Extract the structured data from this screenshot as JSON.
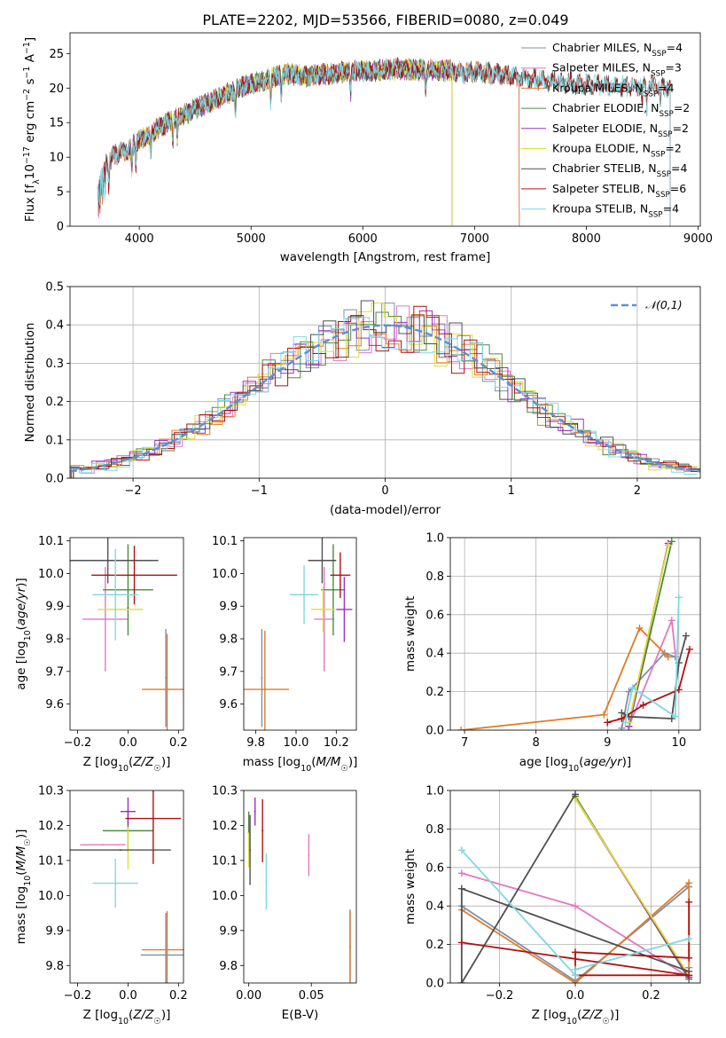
{
  "figure_title": "PLATE=2202, MJD=53566, FIBERID=0080, z=0.049",
  "colors": {
    "Chabrier MILES": "#7f8fa6",
    "Salpeter MILES": "#e377c2",
    "Kroupa MILES": "#e07b28",
    "Chabrier ELODIE": "#4c8c3c",
    "Salpeter ELODIE": "#9b30c8",
    "Kroupa ELODIE": "#dede30",
    "Chabrier STELIB": "#505050",
    "Salpeter STELIB": "#b01010",
    "Kroupa STELIB": "#7fd8e0"
  },
  "chart_data": [
    {
      "id": "spectrum",
      "type": "line",
      "xlabel": "wavelength [Angstrom, rest frame]",
      "ylabel": "Flux [f_λ10^-17 erg cm^-2 s^-1 A^-1]",
      "xlim": [
        3380,
        9020
      ],
      "ylim": [
        0,
        28
      ],
      "xticks": [
        4000,
        5000,
        6000,
        7000,
        8000,
        9000
      ],
      "yticks": [
        0,
        5,
        10,
        15,
        20,
        25
      ],
      "grid": false,
      "legend_position": "top-right",
      "continuum": [
        [
          3630,
          7
        ],
        [
          3700,
          9
        ],
        [
          3800,
          10.5
        ],
        [
          3900,
          11
        ],
        [
          4000,
          12.5
        ],
        [
          4100,
          13.5
        ],
        [
          4300,
          15.5
        ],
        [
          4500,
          17
        ],
        [
          4700,
          18.5
        ],
        [
          4900,
          20
        ],
        [
          5100,
          21
        ],
        [
          5300,
          22
        ],
        [
          5500,
          21.8
        ],
        [
          5700,
          22
        ],
        [
          5900,
          22.5
        ],
        [
          6100,
          22.5
        ],
        [
          6300,
          22.8
        ],
        [
          6500,
          22.7
        ],
        [
          6700,
          22.6
        ],
        [
          6900,
          22.3
        ],
        [
          7100,
          22.2
        ],
        [
          7300,
          21.8
        ],
        [
          7500,
          21.4
        ],
        [
          7700,
          21
        ],
        [
          7900,
          20.6
        ],
        [
          8100,
          20.5
        ],
        [
          8300,
          20.2
        ],
        [
          8500,
          20.4
        ],
        [
          8750,
          20
        ]
      ],
      "series": [
        {
          "name": "Chabrier MILES",
          "nssp": "4",
          "range": [
            3630,
            7400
          ]
        },
        {
          "name": "Salpeter MILES",
          "nssp": "3",
          "range": [
            3630,
            7400
          ]
        },
        {
          "name": "Kroupa MILES",
          "nssp": "4",
          "range": [
            3630,
            7400
          ]
        },
        {
          "name": "Chabrier ELODIE",
          "nssp": "2",
          "range": [
            3900,
            6800
          ]
        },
        {
          "name": "Salpeter ELODIE",
          "nssp": "2",
          "range": [
            3900,
            6800
          ]
        },
        {
          "name": "Kroupa ELODIE",
          "nssp": "2",
          "range": [
            3900,
            6800
          ]
        },
        {
          "name": "Chabrier STELIB",
          "nssp": "4",
          "range": [
            3630,
            8750
          ]
        },
        {
          "name": "Salpeter STELIB",
          "nssp": "6",
          "range": [
            3630,
            8750
          ]
        },
        {
          "name": "Kroupa STELIB",
          "nssp": "4",
          "range": [
            3630,
            8750
          ]
        }
      ]
    },
    {
      "id": "residual_hist",
      "type": "histogram",
      "xlabel": "(data-model)/error",
      "ylabel": "Normed distribution",
      "xlim": [
        -2.5,
        2.5
      ],
      "ylim": [
        0,
        0.5
      ],
      "xticks": [
        -2,
        -1,
        0,
        1,
        2
      ],
      "yticks": [
        0.0,
        0.1,
        0.2,
        0.3,
        0.4,
        0.5
      ],
      "grid": true,
      "bin_width": 0.1,
      "reference": {
        "label": "𝒩(0,1)",
        "color": "#5b8fd8"
      },
      "legend_position": "top-right"
    },
    {
      "id": "age_vs_Z",
      "type": "errorbar",
      "xlabel": "Z [log10(Z/Z☉)]",
      "ylabel": "age [log10(age/yr)]",
      "xlim": [
        -0.23,
        0.22
      ],
      "ylim": [
        9.52,
        10.11
      ],
      "xticks": [
        -0.2,
        0.0,
        0.2
      ],
      "yticks": [
        9.6,
        9.7,
        9.8,
        9.9,
        10.0,
        10.1
      ],
      "points": [
        {
          "series": "Chabrier MILES",
          "x": 0.15,
          "y": 9.68,
          "xerr": 0.0,
          "yerr": 0.15
        },
        {
          "series": "Salpeter MILES",
          "x": -0.09,
          "y": 9.86,
          "xerr": 0.09,
          "yerr": 0.16
        },
        {
          "series": "Kroupa MILES",
          "x": 0.155,
          "y": 9.645,
          "xerr": 0.1,
          "yerr": 0.17
        },
        {
          "series": "Chabrier ELODIE",
          "x": 0.0,
          "y": 9.95,
          "xerr": 0.1,
          "yerr": 0.14
        },
        {
          "series": "Salpeter ELODIE",
          "x": 0.0,
          "y": 9.895,
          "xerr": 0.0,
          "yerr": 0.0
        },
        {
          "series": "Kroupa ELODIE",
          "x": -0.03,
          "y": 9.89,
          "xerr": 0.09,
          "yerr": 0.0
        },
        {
          "series": "Chabrier STELIB",
          "x": -0.08,
          "y": 10.04,
          "xerr": 0.2,
          "yerr": 0.07
        },
        {
          "series": "Salpeter STELIB",
          "x": 0.025,
          "y": 9.995,
          "xerr": 0.17,
          "yerr": 0.09
        },
        {
          "series": "Kroupa STELIB",
          "x": -0.05,
          "y": 9.935,
          "xerr": 0.09,
          "yerr": 0.14
        }
      ]
    },
    {
      "id": "age_vs_mass",
      "type": "errorbar",
      "xlabel": "mass [log10(M/M☉)]",
      "ylabel": "",
      "xlim": [
        9.74,
        10.3
      ],
      "ylim": [
        9.52,
        10.11
      ],
      "xticks": [
        9.8,
        10.0,
        10.2
      ],
      "yticks": [
        9.6,
        9.7,
        9.8,
        9.9,
        10.0,
        10.1
      ],
      "points": [
        {
          "series": "Chabrier MILES",
          "x": 9.83,
          "y": 9.68,
          "xerr": 0.0,
          "yerr": 0.15
        },
        {
          "series": "Salpeter MILES",
          "x": 10.14,
          "y": 9.86,
          "xerr": 0.05,
          "yerr": 0.16
        },
        {
          "series": "Kroupa MILES",
          "x": 9.845,
          "y": 9.645,
          "xerr": 0.12,
          "yerr": 0.18
        },
        {
          "series": "Chabrier ELODIE",
          "x": 10.185,
          "y": 9.95,
          "xerr": 0.06,
          "yerr": 0.14
        },
        {
          "series": "Salpeter ELODIE",
          "x": 10.24,
          "y": 9.89,
          "xerr": 0.04,
          "yerr": 0.1
        },
        {
          "series": "Kroupa ELODIE",
          "x": 10.135,
          "y": 9.89,
          "xerr": 0.06,
          "yerr": 0.07
        },
        {
          "series": "Chabrier STELIB",
          "x": 10.13,
          "y": 10.04,
          "xerr": 0.07,
          "yerr": 0.07
        },
        {
          "series": "Salpeter STELIB",
          "x": 10.22,
          "y": 9.995,
          "xerr": 0.05,
          "yerr": 0.07
        },
        {
          "series": "Kroupa STELIB",
          "x": 10.04,
          "y": 9.935,
          "xerr": 0.07,
          "yerr": 0.09
        }
      ]
    },
    {
      "id": "weight_vs_age",
      "type": "line",
      "xlabel": "age [log10(age/yr)]",
      "ylabel": "mass weight",
      "xlim": [
        6.8,
        10.3
      ],
      "ylim": [
        0,
        1
      ],
      "xticks": [
        7,
        8,
        9,
        10
      ],
      "yticks": [
        0.0,
        0.2,
        0.4,
        0.6,
        0.8,
        1.0
      ],
      "grid": true,
      "series": [
        {
          "name": "Chabrier MILES",
          "x": [
            9.2,
            9.3,
            9.8,
            9.95
          ],
          "y": [
            0.01,
            0.2,
            0.4,
            0.38
          ]
        },
        {
          "name": "Salpeter MILES",
          "x": [
            9.3,
            9.9,
            9.95
          ],
          "y": [
            0.02,
            0.57,
            0.4
          ]
        },
        {
          "name": "Kroupa MILES",
          "x": [
            6.95,
            8.95,
            9.45,
            9.85
          ],
          "y": [
            0.0,
            0.08,
            0.53,
            0.38
          ]
        },
        {
          "name": "Chabrier ELODIE",
          "x": [
            9.3,
            9.9
          ],
          "y": [
            0.02,
            0.98
          ]
        },
        {
          "name": "Salpeter ELODIE",
          "x": [
            9.3,
            9.85
          ],
          "y": [
            0.02,
            0.97
          ]
        },
        {
          "name": "Kroupa ELODIE",
          "x": [
            9.3,
            9.85
          ],
          "y": [
            0.04,
            0.96
          ]
        },
        {
          "name": "Chabrier STELIB",
          "x": [
            9.2,
            9.3,
            9.9,
            10.0,
            10.1
          ],
          "y": [
            0.09,
            0.07,
            0.06,
            0.35,
            0.49
          ]
        },
        {
          "name": "Salpeter STELIB",
          "x": [
            9.0,
            9.2,
            9.5,
            10.0,
            10.15
          ],
          "y": [
            0.04,
            0.06,
            0.13,
            0.21,
            0.42
          ]
        },
        {
          "name": "Kroupa STELIB",
          "x": [
            9.25,
            9.35,
            9.95,
            10.0
          ],
          "y": [
            0.04,
            0.22,
            0.07,
            0.69
          ]
        }
      ]
    },
    {
      "id": "mass_vs_Z",
      "type": "errorbar",
      "xlabel": "Z [log10(Z/Z☉)]",
      "ylabel": "mass [log10(M/M☉)]",
      "xlim": [
        -0.23,
        0.22
      ],
      "ylim": [
        9.75,
        10.3
      ],
      "xticks": [
        -0.2,
        0.0,
        0.2
      ],
      "yticks": [
        9.8,
        9.9,
        10.0,
        10.1,
        10.2,
        10.3
      ],
      "points": [
        {
          "series": "Chabrier MILES",
          "x": 0.15,
          "y": 9.83,
          "xerr": 0.1,
          "yerr": 0.12
        },
        {
          "series": "Salpeter MILES",
          "x": -0.1,
          "y": 10.145,
          "xerr": 0.09,
          "yerr": 0.0
        },
        {
          "series": "Kroupa MILES",
          "x": 0.155,
          "y": 9.845,
          "xerr": 0.1,
          "yerr": 0.11
        },
        {
          "series": "Chabrier ELODIE",
          "x": 0.0,
          "y": 10.185,
          "xerr": 0.1,
          "yerr": 0.06
        },
        {
          "series": "Salpeter ELODIE",
          "x": 0.0,
          "y": 10.24,
          "xerr": 0.03,
          "yerr": 0.04
        },
        {
          "series": "Kroupa ELODIE",
          "x": 0.0,
          "y": 10.135,
          "xerr": 0.0,
          "yerr": 0.06
        },
        {
          "series": "Chabrier STELIB",
          "x": -0.03,
          "y": 10.13,
          "xerr": 0.2,
          "yerr": 0.0
        },
        {
          "series": "Salpeter STELIB",
          "x": 0.1,
          "y": 10.22,
          "xerr": 0.11,
          "yerr": 0.13
        },
        {
          "series": "Kroupa STELIB",
          "x": -0.05,
          "y": 10.035,
          "xerr": 0.09,
          "yerr": 0.07
        }
      ]
    },
    {
      "id": "mass_vs_ebv",
      "type": "errorbar",
      "xlabel": "E(B-V)",
      "ylabel": "",
      "xlim": [
        -0.004,
        0.086
      ],
      "ylim": [
        9.75,
        10.3
      ],
      "xticks": [
        0.0,
        0.05
      ],
      "yticks": [
        9.8,
        9.9,
        10.0,
        10.1,
        10.2,
        10.3
      ],
      "points": [
        {
          "series": "Chabrier MILES",
          "x": 0.081,
          "y": 9.85,
          "xerr": 0.0,
          "yerr": 0.11
        },
        {
          "series": "Salpeter MILES",
          "x": 0.048,
          "y": 10.115,
          "xerr": 0.0,
          "yerr": 0.06
        },
        {
          "series": "Kroupa MILES",
          "x": 0.081,
          "y": 9.855,
          "xerr": 0.0,
          "yerr": 0.1
        },
        {
          "series": "Chabrier ELODIE",
          "x": 0.0,
          "y": 10.18,
          "xerr": 0.0,
          "yerr": 0.06
        },
        {
          "series": "Salpeter ELODIE",
          "x": 0.005,
          "y": 10.24,
          "xerr": 0.0,
          "yerr": 0.04
        },
        {
          "series": "Kroupa ELODIE",
          "x": 0.0,
          "y": 10.13,
          "xerr": 0.0,
          "yerr": 0.05
        },
        {
          "series": "Chabrier STELIB",
          "x": 0.001,
          "y": 10.13,
          "xerr": 0.0,
          "yerr": 0.1
        },
        {
          "series": "Salpeter STELIB",
          "x": 0.011,
          "y": 10.185,
          "xerr": 0.0,
          "yerr": 0.09
        },
        {
          "series": "Kroupa STELIB",
          "x": 0.014,
          "y": 10.04,
          "xerr": 0.0,
          "yerr": 0.08
        }
      ]
    },
    {
      "id": "weight_vs_Z",
      "type": "line",
      "xlabel": "Z [log10(Z/Z☉)]",
      "ylabel": "mass weight",
      "xlim": [
        -0.33,
        0.33
      ],
      "ylim": [
        0,
        1
      ],
      "xticks": [
        -0.2,
        0.0,
        0.2
      ],
      "yticks": [
        0.0,
        0.2,
        0.4,
        0.6,
        0.8,
        1.0
      ],
      "grid": true,
      "series": [
        {
          "name": "Chabrier MILES",
          "x": [
            -0.3,
            0.0,
            0.3
          ],
          "y": [
            0.4,
            0.01,
            0.5
          ]
        },
        {
          "name": "Salpeter MILES",
          "x": [
            -0.3,
            0.0,
            0.3
          ],
          "y": [
            0.57,
            0.4,
            0.03
          ]
        },
        {
          "name": "Kroupa MILES",
          "x": [
            -0.3,
            0.0,
            0.3,
            0.3
          ],
          "y": [
            0.38,
            0.0,
            0.52,
            0.08
          ]
        },
        {
          "name": "Chabrier ELODIE",
          "x": [
            0.0,
            0.3
          ],
          "y": [
            0.97,
            0.02
          ]
        },
        {
          "name": "Salpeter ELODIE",
          "x": [
            0.0,
            0.3
          ],
          "y": [
            0.96,
            0.03
          ]
        },
        {
          "name": "Kroupa ELODIE",
          "x": [
            0.0,
            0.3
          ],
          "y": [
            0.96,
            0.04
          ]
        },
        {
          "name": "Chabrier STELIB",
          "x": [
            0.0,
            -0.3,
            -0.3,
            0.3
          ],
          "y": [
            0.98,
            0.0,
            0.49,
            0.06
          ]
        },
        {
          "name": "Salpeter STELIB",
          "x": [
            -0.3,
            0.3,
            0.0,
            0.0,
            0.3,
            0.3
          ],
          "y": [
            0.21,
            0.04,
            0.04,
            0.16,
            0.13,
            0.42
          ]
        },
        {
          "name": "Kroupa STELIB",
          "x": [
            -0.3,
            0.0,
            0.0,
            0.3
          ],
          "y": [
            0.69,
            0.04,
            0.07,
            0.23
          ]
        }
      ]
    }
  ]
}
